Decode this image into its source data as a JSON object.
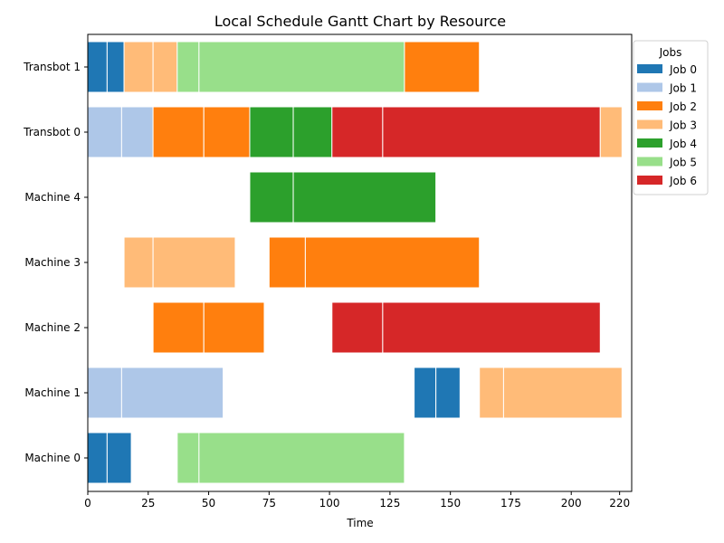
{
  "chart_data": {
    "type": "gantt",
    "title": "Local Schedule Gantt Chart by Resource",
    "xlabel": "Time",
    "ylabel": "",
    "xlim": [
      0,
      225
    ],
    "xticks": [
      0,
      25,
      50,
      75,
      100,
      125,
      150,
      175,
      200,
      220
    ],
    "grid": false,
    "legend": {
      "title": "Jobs",
      "placement": "top-right",
      "entries": [
        {
          "name": "Job 0",
          "color": "#1f77b4"
        },
        {
          "name": "Job 1",
          "color": "#aec7e8"
        },
        {
          "name": "Job 2",
          "color": "#ff7f0e"
        },
        {
          "name": "Job 3",
          "color": "#ffbb78"
        },
        {
          "name": "Job 4",
          "color": "#2ca02c"
        },
        {
          "name": "Job 5",
          "color": "#98df8a"
        },
        {
          "name": "Job 6",
          "color": "#d62728"
        }
      ]
    },
    "resources": [
      "Transbot 1",
      "Transbot 0",
      "Machine 4",
      "Machine 3",
      "Machine 2",
      "Machine 1",
      "Machine 0"
    ],
    "tasks": [
      {
        "resource": "Transbot 1",
        "job": 0,
        "start": 0,
        "end": 8
      },
      {
        "resource": "Transbot 1",
        "job": 0,
        "start": 8,
        "end": 15
      },
      {
        "resource": "Transbot 1",
        "job": 3,
        "start": 15,
        "end": 27
      },
      {
        "resource": "Transbot 1",
        "job": 3,
        "start": 27,
        "end": 37
      },
      {
        "resource": "Transbot 1",
        "job": 5,
        "start": 37,
        "end": 46
      },
      {
        "resource": "Transbot 1",
        "job": 5,
        "start": 46,
        "end": 131
      },
      {
        "resource": "Transbot 1",
        "job": 2,
        "start": 131,
        "end": 162
      },
      {
        "resource": "Transbot 0",
        "job": 1,
        "start": 0,
        "end": 14
      },
      {
        "resource": "Transbot 0",
        "job": 1,
        "start": 14,
        "end": 27
      },
      {
        "resource": "Transbot 0",
        "job": 2,
        "start": 27,
        "end": 48
      },
      {
        "resource": "Transbot 0",
        "job": 2,
        "start": 48,
        "end": 67
      },
      {
        "resource": "Transbot 0",
        "job": 4,
        "start": 67,
        "end": 85
      },
      {
        "resource": "Transbot 0",
        "job": 4,
        "start": 85,
        "end": 101
      },
      {
        "resource": "Transbot 0",
        "job": 6,
        "start": 101,
        "end": 122
      },
      {
        "resource": "Transbot 0",
        "job": 6,
        "start": 122,
        "end": 212
      },
      {
        "resource": "Transbot 0",
        "job": 3,
        "start": 212,
        "end": 221
      },
      {
        "resource": "Machine 4",
        "job": 4,
        "start": 67,
        "end": 85
      },
      {
        "resource": "Machine 4",
        "job": 4,
        "start": 85,
        "end": 144
      },
      {
        "resource": "Machine 3",
        "job": 3,
        "start": 15,
        "end": 27
      },
      {
        "resource": "Machine 3",
        "job": 3,
        "start": 27,
        "end": 61
      },
      {
        "resource": "Machine 3",
        "job": 2,
        "start": 75,
        "end": 90
      },
      {
        "resource": "Machine 3",
        "job": 2,
        "start": 90,
        "end": 162
      },
      {
        "resource": "Machine 2",
        "job": 2,
        "start": 27,
        "end": 48
      },
      {
        "resource": "Machine 2",
        "job": 2,
        "start": 48,
        "end": 73
      },
      {
        "resource": "Machine 2",
        "job": 6,
        "start": 101,
        "end": 122
      },
      {
        "resource": "Machine 2",
        "job": 6,
        "start": 122,
        "end": 212
      },
      {
        "resource": "Machine 1",
        "job": 1,
        "start": 0,
        "end": 14
      },
      {
        "resource": "Machine 1",
        "job": 1,
        "start": 14,
        "end": 56
      },
      {
        "resource": "Machine 1",
        "job": 0,
        "start": 135,
        "end": 144
      },
      {
        "resource": "Machine 1",
        "job": 0,
        "start": 144,
        "end": 154
      },
      {
        "resource": "Machine 1",
        "job": 3,
        "start": 162,
        "end": 172
      },
      {
        "resource": "Machine 1",
        "job": 3,
        "start": 172,
        "end": 221
      },
      {
        "resource": "Machine 0",
        "job": 0,
        "start": 0,
        "end": 8
      },
      {
        "resource": "Machine 0",
        "job": 0,
        "start": 8,
        "end": 18
      },
      {
        "resource": "Machine 0",
        "job": 5,
        "start": 37,
        "end": 46
      },
      {
        "resource": "Machine 0",
        "job": 5,
        "start": 46,
        "end": 131
      }
    ]
  }
}
